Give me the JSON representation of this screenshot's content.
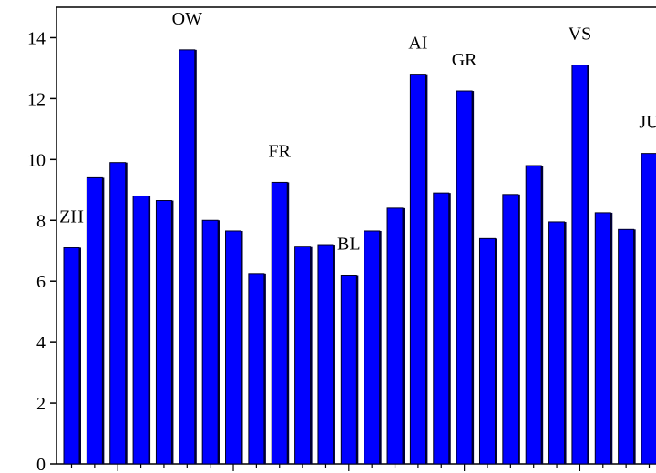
{
  "chart_data": {
    "type": "bar",
    "categories": [
      "ZH",
      null,
      null,
      null,
      null,
      "OW",
      null,
      null,
      null,
      "FR",
      null,
      null,
      "BL",
      null,
      null,
      "AI",
      null,
      "GR",
      null,
      null,
      null,
      null,
      "VS",
      null,
      null,
      "JU"
    ],
    "values": [
      7.1,
      9.4,
      9.9,
      8.8,
      8.65,
      13.6,
      8.0,
      7.65,
      6.25,
      9.25,
      7.15,
      7.2,
      6.2,
      7.65,
      8.4,
      12.8,
      8.9,
      12.25,
      7.4,
      8.85,
      9.8,
      7.95,
      13.1,
      8.25,
      7.7,
      10.2
    ],
    "color": "#0000ff",
    "ylim": [
      0,
      15
    ],
    "yticks": [
      0,
      2,
      4,
      6,
      8,
      10,
      12,
      14
    ],
    "grid": false
  }
}
